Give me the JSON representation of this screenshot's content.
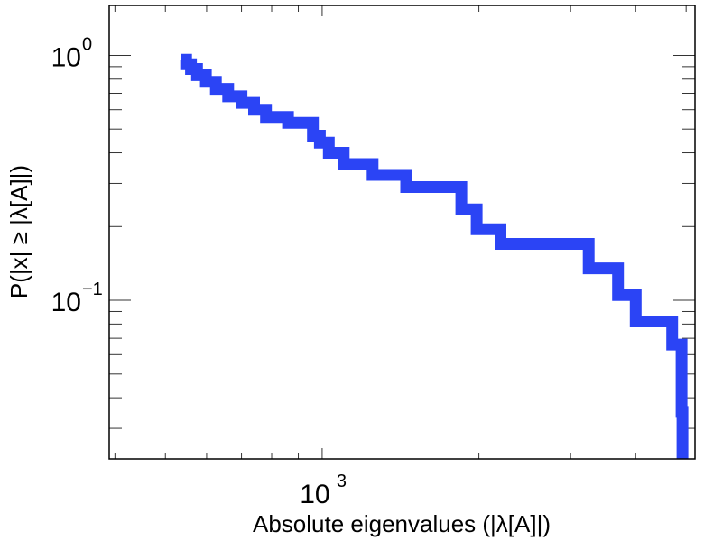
{
  "chart_data": {
    "type": "line",
    "step": true,
    "xscale": "log",
    "yscale": "log",
    "xlabel": "Absolute eigenvalues (|λ[A]|)",
    "ylabel": "P(|x| ≥ |λ[A]|)",
    "xlim": [
      390,
      5200
    ],
    "ylim": [
      0.0225,
      1.6
    ],
    "grid": false,
    "x_ticks": [
      {
        "base": "10",
        "exp": "3",
        "value": 1000
      }
    ],
    "y_ticks": [
      {
        "base": "10",
        "exp": "0",
        "value": 1
      },
      {
        "base": "10",
        "exp": "−1",
        "value": 0.1
      }
    ],
    "series": [
      {
        "color": "#2b44f5",
        "x": [
          535,
          548,
          560,
          575,
          598,
          625,
          660,
          700,
          740,
          780,
          860,
          960,
          990,
          1030,
          1100,
          1250,
          1450,
          1850,
          1980,
          2200,
          3250,
          3700,
          4000,
          4700,
          4900,
          4920
        ],
        "y": [
          0.96,
          0.92,
          0.88,
          0.83,
          0.78,
          0.73,
          0.68,
          0.64,
          0.6,
          0.56,
          0.53,
          0.47,
          0.44,
          0.4,
          0.36,
          0.325,
          0.29,
          0.235,
          0.195,
          0.17,
          0.135,
          0.105,
          0.082,
          0.066,
          0.035,
          0.0225
        ]
      }
    ]
  }
}
